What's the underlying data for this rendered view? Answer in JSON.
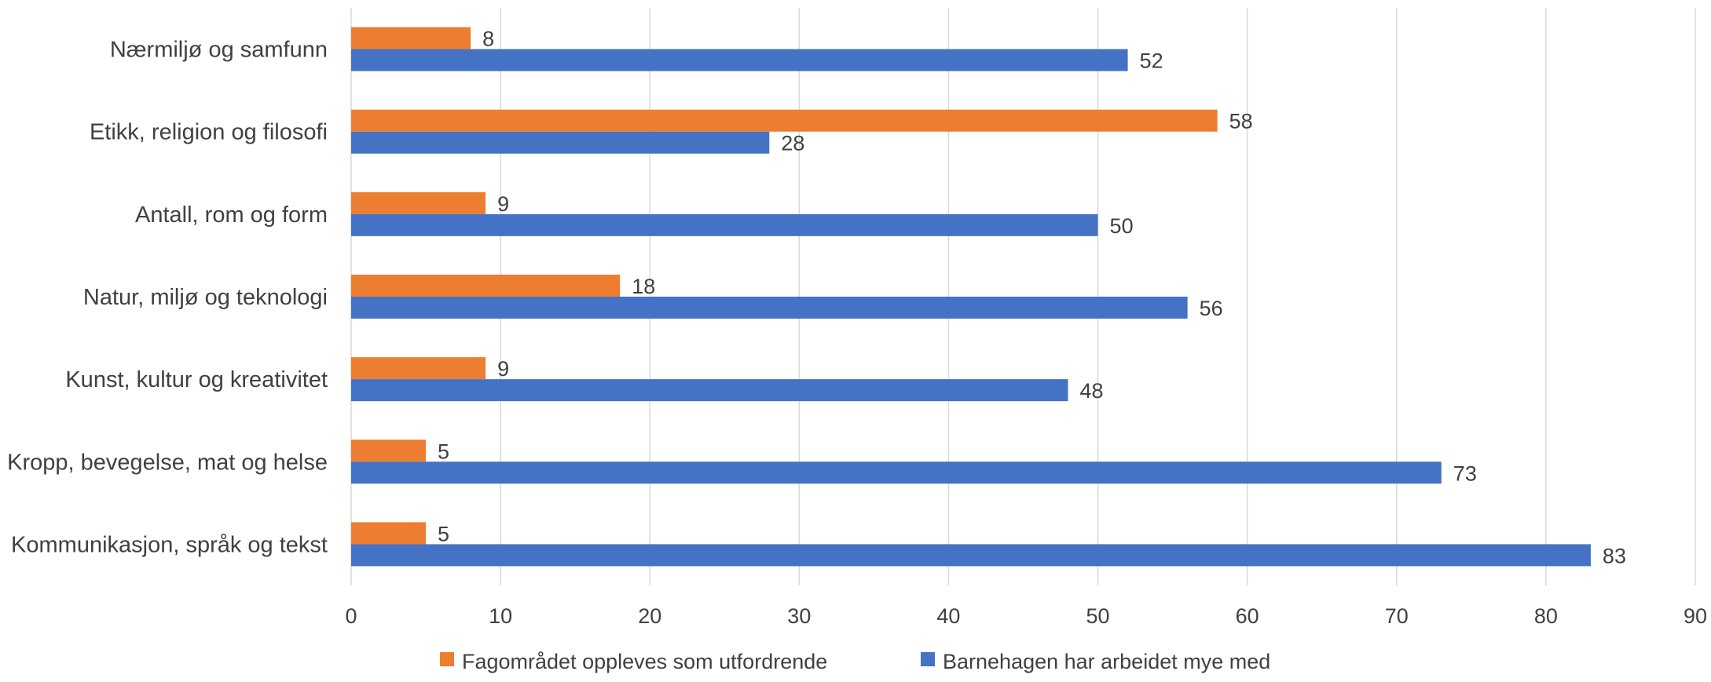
{
  "chart_data": {
    "type": "bar",
    "orientation": "horizontal",
    "categories": [
      "Nærmiljø og samfunn",
      "Etikk, religion og filosofi",
      "Antall, rom og form",
      "Natur, miljø og teknologi",
      "Kunst, kultur og kreativitet",
      "Kropp, bevegelse, mat og helse",
      "Kommunikasjon, språk og tekst"
    ],
    "series": [
      {
        "name": "Fagområdet oppleves som utfordrende",
        "color": "#ED7D31",
        "values": [
          8,
          58,
          9,
          18,
          9,
          5,
          5
        ]
      },
      {
        "name": "Barnehagen har arbeidet mye med",
        "color": "#4472C4",
        "values": [
          52,
          28,
          50,
          56,
          48,
          73,
          83
        ]
      }
    ],
    "xlim": [
      0,
      90
    ],
    "xticks": [
      0,
      10,
      20,
      30,
      40,
      50,
      60,
      70,
      80,
      90
    ],
    "grid": true,
    "legend_position": "bottom",
    "title": "",
    "xlabel": "",
    "ylabel": ""
  }
}
